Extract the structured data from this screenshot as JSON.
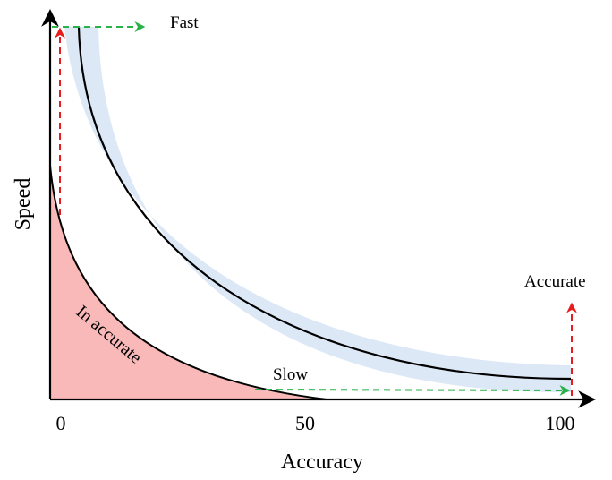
{
  "chart_data": {
    "type": "diagram",
    "xlabel": "Accuracy",
    "ylabel": "Speed",
    "x_ticks": [
      "0",
      "50",
      "100"
    ],
    "annotations": {
      "fast": "Fast",
      "slow": "Slow",
      "accurate": "Accurate",
      "inaccurate": "In accurate"
    },
    "colors": {
      "band": "#dce8f6",
      "region": "#f9b9b9",
      "green_arrow": "#2ab24a",
      "red_arrow": "#e81c1c",
      "curve": "#000000"
    }
  }
}
